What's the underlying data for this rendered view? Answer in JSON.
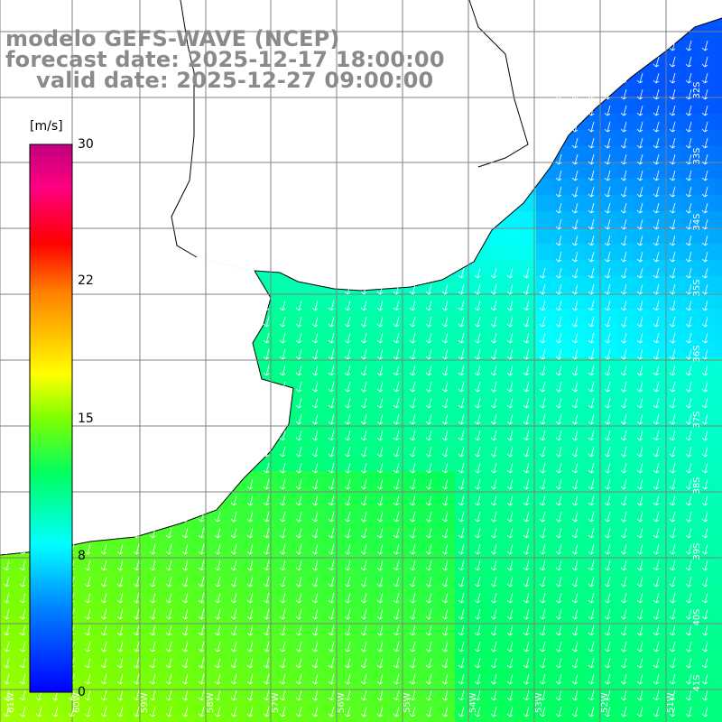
{
  "titles": {
    "line1": "modelo GEFS-WAVE (NCEP)",
    "line2": "forecast date: 2025-12-17 18:00:00",
    "line3": "valid date: 2025-12-27 09:00:00"
  },
  "colorbar": {
    "unit": "[m/s]",
    "min": 0,
    "max": 30,
    "ticks": [
      "30",
      "22",
      "15",
      "8",
      "0"
    ]
  },
  "lon_labels": [
    "61W",
    "60W",
    "59W",
    "58W",
    "57W",
    "56W",
    "55W",
    "54W",
    "53W",
    "52W",
    "51W"
  ],
  "lat_labels": [
    "32S",
    "33S",
    "34S",
    "35S",
    "36S",
    "37S",
    "38S",
    "39S",
    "40S",
    "41S"
  ],
  "colors": {
    "land": "#ffffff",
    "coastline": "#000000",
    "grid": "#808080",
    "arrows": "#ffffff",
    "title_text": "#8a8a8a"
  }
}
